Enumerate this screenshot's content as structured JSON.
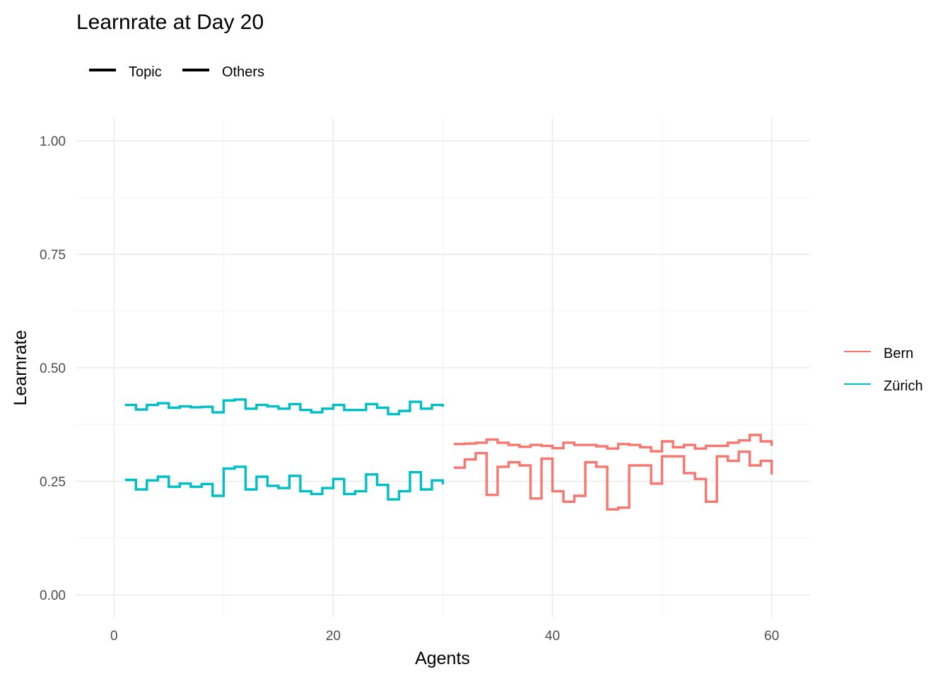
{
  "chart_data": {
    "type": "line",
    "step": true,
    "title": "Learnrate at Day 20",
    "xlabel": "Agents",
    "ylabel": "Learnrate",
    "xlim": [
      -3.5,
      63.5
    ],
    "ylim": [
      -0.05,
      1.05
    ],
    "x_ticks": [
      0,
      20,
      40,
      60
    ],
    "x_tick_labels": [
      "0",
      "20",
      "40",
      "60"
    ],
    "y_ticks": [
      0,
      0.25,
      0.5,
      0.75,
      1.0
    ],
    "y_tick_labels": [
      "0.00",
      "0.25",
      "0.50",
      "0.75",
      "1.00"
    ],
    "grid": true,
    "linetype_legend": {
      "position": "top-left",
      "entries": [
        "Topic",
        "Others"
      ]
    },
    "color_legend": {
      "position": "right",
      "entries": [
        {
          "name": "Bern",
          "color": "#F8766D"
        },
        {
          "name": "Zürich",
          "color": "#00BFC4"
        }
      ]
    },
    "series": [
      {
        "name": "Zürich",
        "kind": "Topic",
        "color": "#00BFC4",
        "x": [
          1,
          2,
          3,
          4,
          5,
          6,
          7,
          8,
          9,
          10,
          11,
          12,
          13,
          14,
          15,
          16,
          17,
          18,
          19,
          20,
          21,
          22,
          23,
          24,
          25,
          26,
          27,
          28,
          29,
          30
        ],
        "y": [
          0.418,
          0.408,
          0.418,
          0.422,
          0.412,
          0.415,
          0.413,
          0.414,
          0.402,
          0.428,
          0.43,
          0.41,
          0.418,
          0.415,
          0.41,
          0.42,
          0.407,
          0.402,
          0.41,
          0.418,
          0.407,
          0.407,
          0.42,
          0.412,
          0.398,
          0.405,
          0.425,
          0.41,
          0.418,
          0.414
        ]
      },
      {
        "name": "Zürich",
        "kind": "Others",
        "color": "#00BFC4",
        "x": [
          1,
          2,
          3,
          4,
          5,
          6,
          7,
          8,
          9,
          10,
          11,
          12,
          13,
          14,
          15,
          16,
          17,
          18,
          19,
          20,
          21,
          22,
          23,
          24,
          25,
          26,
          27,
          28,
          29,
          30
        ],
        "y": [
          0.253,
          0.232,
          0.252,
          0.26,
          0.238,
          0.245,
          0.238,
          0.244,
          0.218,
          0.278,
          0.282,
          0.232,
          0.26,
          0.24,
          0.235,
          0.262,
          0.228,
          0.222,
          0.235,
          0.255,
          0.222,
          0.228,
          0.265,
          0.242,
          0.21,
          0.228,
          0.27,
          0.232,
          0.252,
          0.243
        ]
      },
      {
        "name": "Bern",
        "kind": "Topic",
        "color": "#F8766D",
        "x": [
          31,
          32,
          33,
          34,
          35,
          36,
          37,
          38,
          39,
          40,
          41,
          42,
          43,
          44,
          45,
          46,
          47,
          48,
          49,
          50,
          51,
          52,
          53,
          54,
          55,
          56,
          57,
          58,
          59,
          60
        ],
        "y": [
          0.332,
          0.333,
          0.335,
          0.342,
          0.335,
          0.33,
          0.326,
          0.33,
          0.328,
          0.323,
          0.335,
          0.33,
          0.33,
          0.327,
          0.322,
          0.332,
          0.33,
          0.325,
          0.316,
          0.338,
          0.325,
          0.33,
          0.322,
          0.328,
          0.328,
          0.335,
          0.34,
          0.352,
          0.338,
          0.328
        ]
      },
      {
        "name": "Bern",
        "kind": "Others",
        "color": "#F8766D",
        "x": [
          31,
          32,
          33,
          34,
          35,
          36,
          37,
          38,
          39,
          40,
          41,
          42,
          43,
          44,
          45,
          46,
          47,
          48,
          49,
          50,
          51,
          52,
          53,
          54,
          55,
          56,
          57,
          58,
          59,
          60
        ],
        "y": [
          0.28,
          0.298,
          0.312,
          0.22,
          0.282,
          0.292,
          0.285,
          0.212,
          0.3,
          0.228,
          0.205,
          0.218,
          0.292,
          0.282,
          0.188,
          0.192,
          0.285,
          0.285,
          0.245,
          0.305,
          0.305,
          0.268,
          0.255,
          0.205,
          0.305,
          0.295,
          0.315,
          0.285,
          0.295,
          0.265
        ]
      }
    ]
  }
}
